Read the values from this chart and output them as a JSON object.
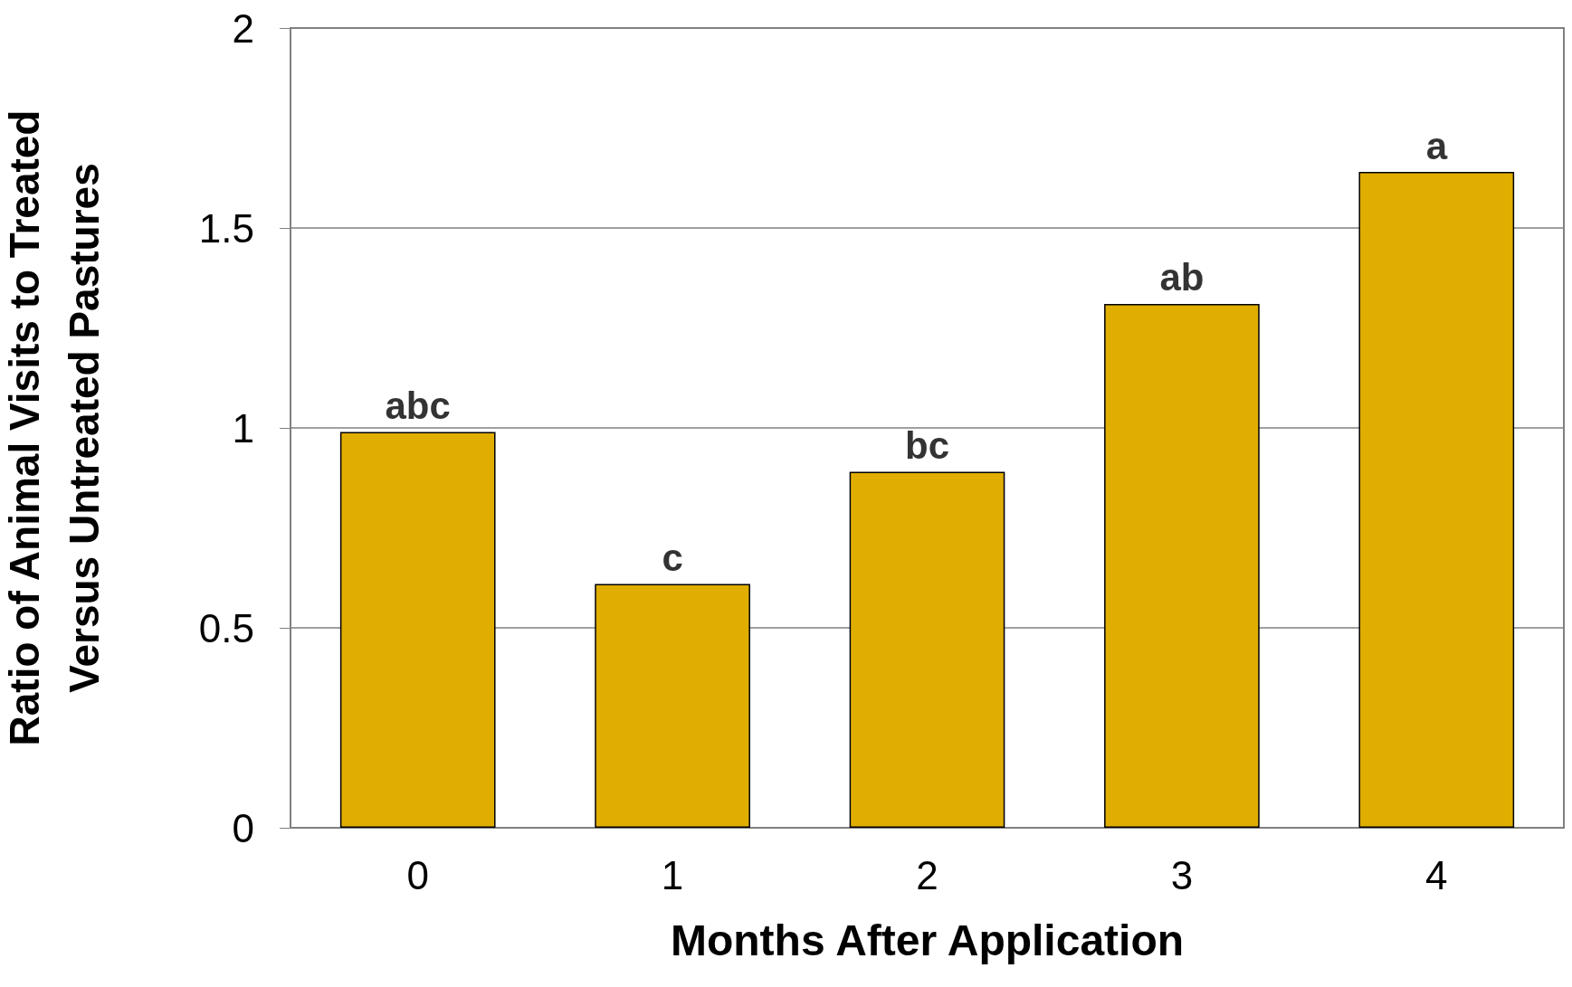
{
  "chart_data": {
    "type": "bar",
    "xlabel": "Months After Application",
    "ylabel": "Ratio of Animal Visits to Treated\nVersus Untreated Pastures",
    "categories": [
      "0",
      "1",
      "2",
      "3",
      "4"
    ],
    "values": [
      0.99,
      0.61,
      0.89,
      1.31,
      1.64
    ],
    "color": "#e0ae00",
    "ylim": [
      0,
      2
    ],
    "yticks": [
      0,
      0.5,
      1,
      1.5,
      2
    ],
    "grid": "y",
    "annotations": [
      {
        "text": "abc",
        "x": "0",
        "y": 0.99
      },
      {
        "text": "c",
        "x": "1",
        "y": 0.61
      },
      {
        "text": "bc",
        "x": "2",
        "y": 0.89
      },
      {
        "text": "ab",
        "x": "3",
        "y": 1.31
      },
      {
        "text": "a",
        "x": "4",
        "y": 1.64
      }
    ]
  }
}
